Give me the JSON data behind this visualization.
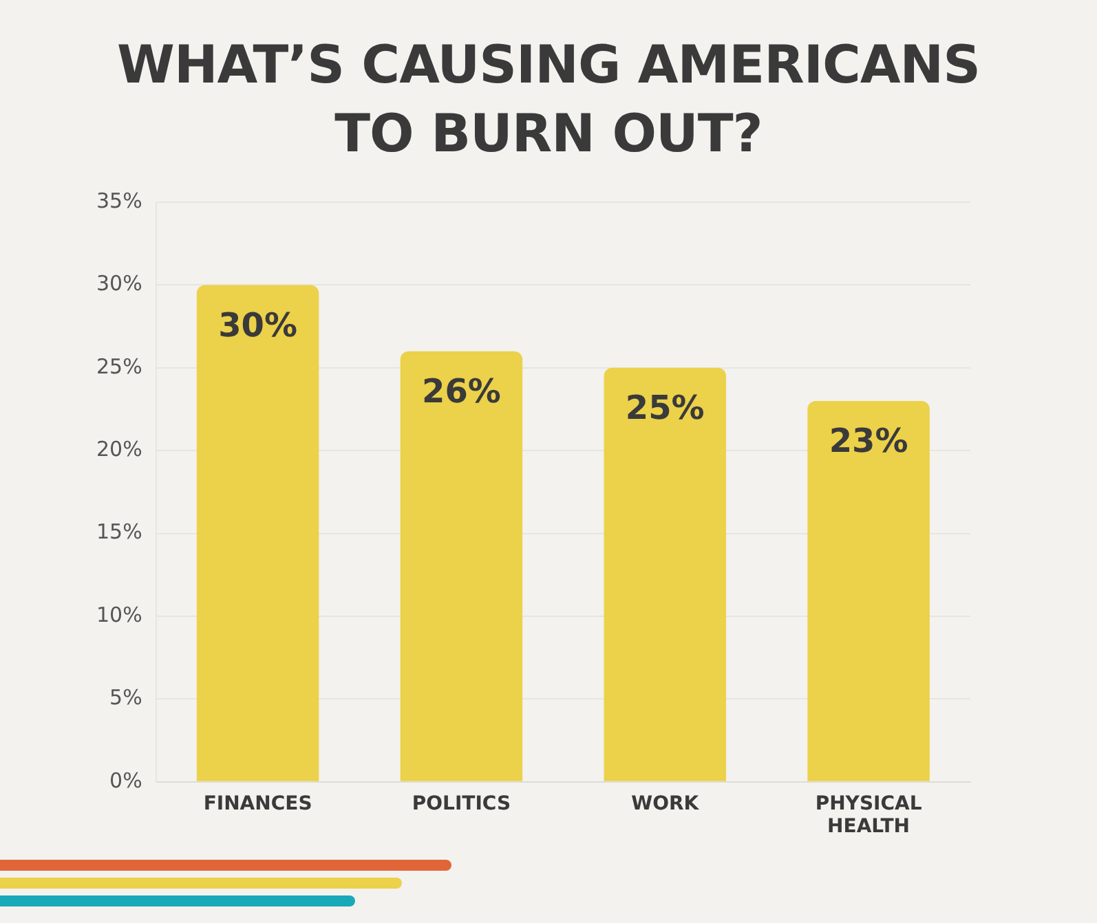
{
  "chart_data": {
    "type": "bar",
    "title": "WHAT’S CAUSING AMERICANS TO BURN OUT?",
    "categories": [
      "FINANCES",
      "POLITICS",
      "WORK",
      "PHYSICAL HEALTH"
    ],
    "values": [
      30,
      26,
      25,
      23
    ],
    "value_labels": [
      "30%",
      "26%",
      "25%",
      "23%"
    ],
    "color": "#ecd14a",
    "ylim": [
      0,
      35
    ],
    "yticks": [
      {
        "value": 0,
        "label": "0%"
      },
      {
        "value": 5,
        "label": "5%"
      },
      {
        "value": 10,
        "label": "10%"
      },
      {
        "value": 15,
        "label": "15%"
      },
      {
        "value": 20,
        "label": "20%"
      },
      {
        "value": 25,
        "label": "25%"
      },
      {
        "value": 30,
        "label": "30%"
      },
      {
        "value": 35,
        "label": "35%"
      }
    ],
    "grid": "y"
  }
}
